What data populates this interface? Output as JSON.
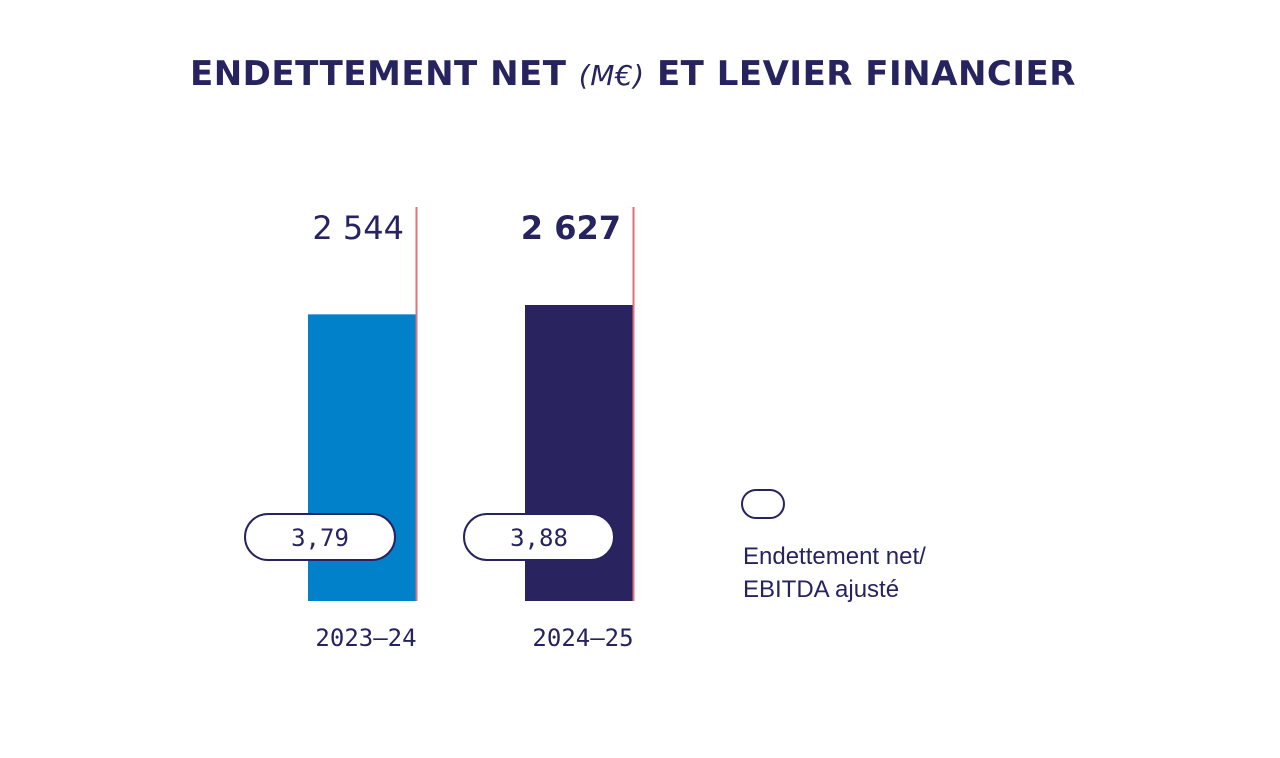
{
  "title": {
    "main": "ENDETTEMENT NET",
    "unit": "(M€)",
    "suffix": "ET LEVIER FINANCIER"
  },
  "legend": {
    "label_line1": "Endettement net/",
    "label_line2": "EBITDA ajusté"
  },
  "colors": {
    "text": "#27235f",
    "bar_2023": "#0081c9",
    "bar_2024": "#29235f",
    "accent_line": "#e0707a"
  },
  "chart_data": {
    "type": "bar",
    "categories": [
      "2023–24",
      "2024–25"
    ],
    "series": [
      {
        "values": [
          2544,
          2627
        ]
      }
    ],
    "value_labels": [
      "2 544",
      "2 627"
    ],
    "leverage": {
      "values": [
        3.79,
        3.88
      ],
      "labels": [
        "3,79",
        "3,88"
      ]
    },
    "legend_position": "right"
  }
}
